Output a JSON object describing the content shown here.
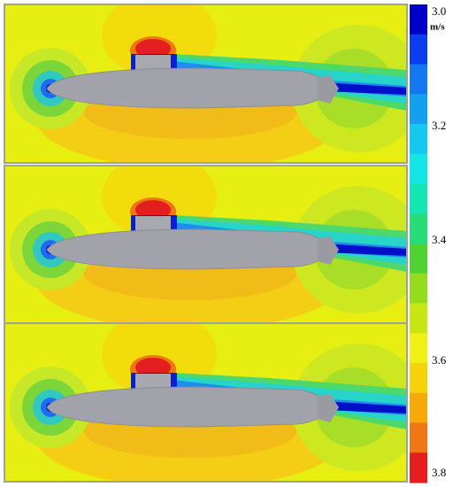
{
  "colorbar": {
    "unit": "m/s",
    "labels": [
      "3.0",
      "3.2",
      "3.4",
      "3.6",
      "3.8"
    ]
  }
}
